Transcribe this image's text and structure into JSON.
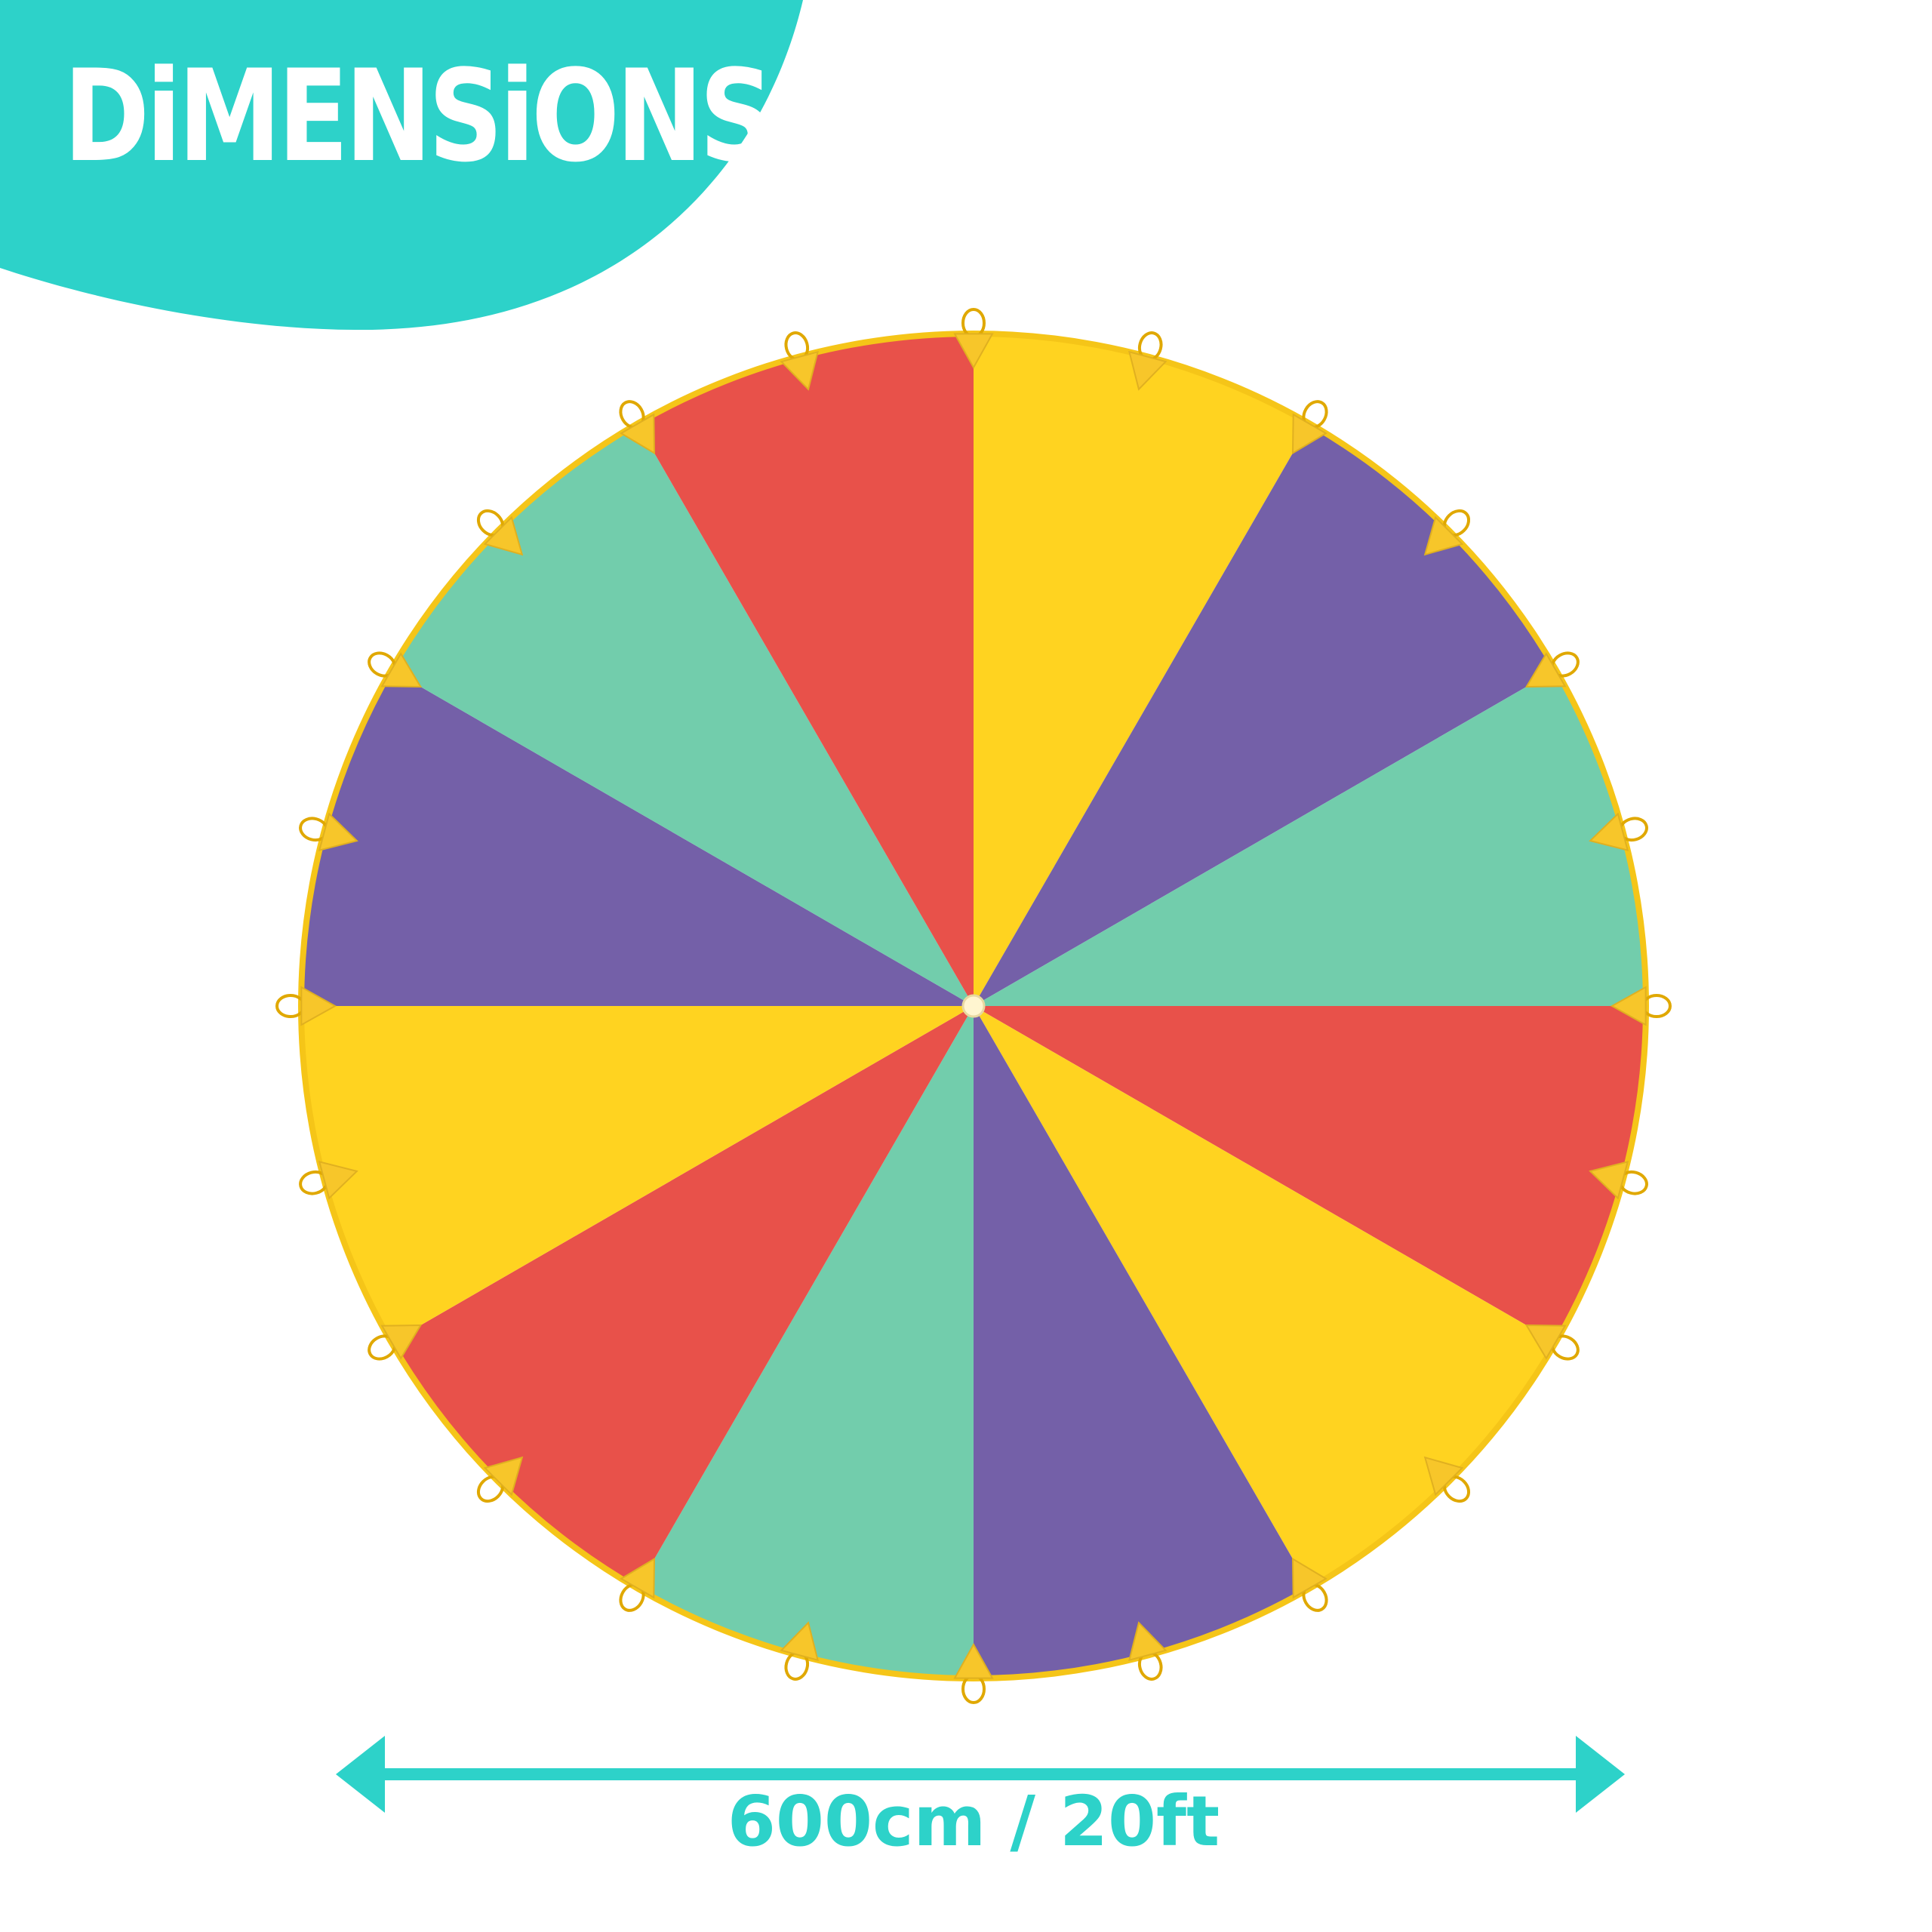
{
  "header": {
    "title": "DiMENSiONS",
    "accent_color": "#2dd2c9"
  },
  "product": {
    "segment_count": 12,
    "handle_count": 24,
    "segment_colors_clockwise_from_top": [
      "#ffd320",
      "#7460a8",
      "#72cdac",
      "#e8514a",
      "#ffd320",
      "#7460a8",
      "#72cdac",
      "#e8514a",
      "#ffd320",
      "#7460a8",
      "#72cdac",
      "#e8514a"
    ],
    "rim_color": "#f5c518"
  },
  "dimension": {
    "label": "600cm / 20ft",
    "icon": "double-arrow-icon",
    "color": "#2dd2c9"
  }
}
